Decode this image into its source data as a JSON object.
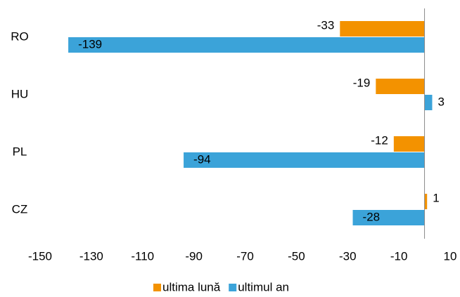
{
  "chart_data": {
    "type": "hbar",
    "categories": [
      "RO",
      "HU",
      "PL",
      "CZ"
    ],
    "series": [
      {
        "name": "ultima lună",
        "color": "#f39200",
        "values": [
          -33,
          -19,
          -12,
          1
        ]
      },
      {
        "name": "ultimul an",
        "color": "#3ba3d9",
        "values": [
          -139,
          3,
          -94,
          -28
        ]
      }
    ],
    "xlim": [
      -150,
      10
    ],
    "xticks": [
      -150,
      -130,
      -110,
      -90,
      -70,
      -50,
      -30,
      -10,
      10
    ],
    "legend": "bottom"
  }
}
